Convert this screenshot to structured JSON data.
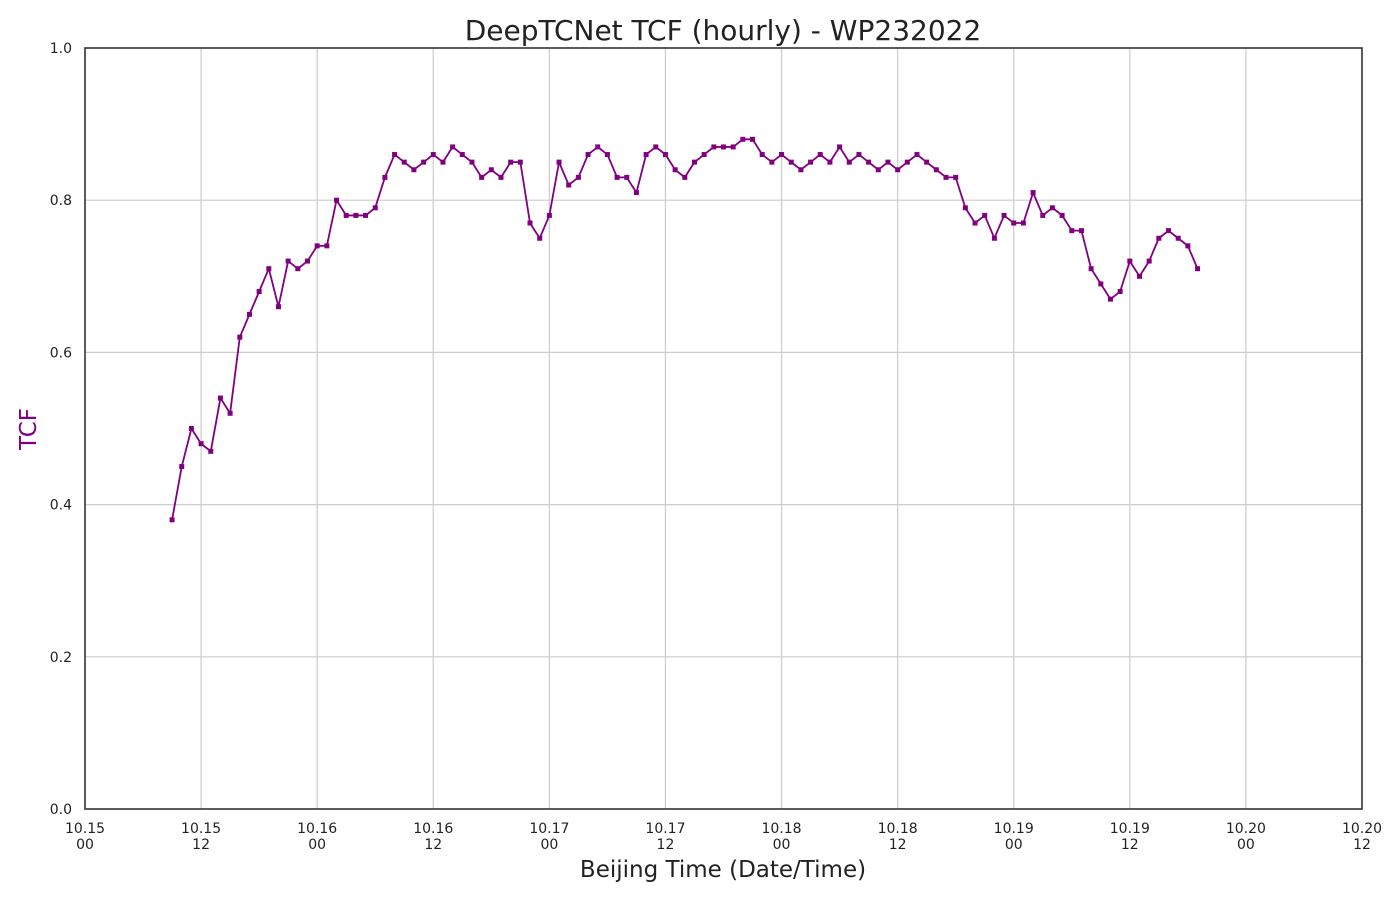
{
  "chart_data": {
    "type": "line",
    "title": "DeepTCNet TCF (hourly) - WP232022",
    "xlabel": "Beijing Time (Date/Time)",
    "ylabel": "TCF",
    "ylim": [
      0,
      1
    ],
    "yticks": [
      "0.0",
      "0.2",
      "0.4",
      "0.6",
      "0.8",
      "1.0"
    ],
    "xlim_hours": [
      0,
      132
    ],
    "xticks": [
      {
        "date": "10.15",
        "time": "00"
      },
      {
        "date": "10.15",
        "time": "12"
      },
      {
        "date": "10.16",
        "time": "00"
      },
      {
        "date": "10.16",
        "time": "12"
      },
      {
        "date": "10.17",
        "time": "00"
      },
      {
        "date": "10.17",
        "time": "12"
      },
      {
        "date": "10.18",
        "time": "00"
      },
      {
        "date": "10.18",
        "time": "12"
      },
      {
        "date": "10.19",
        "time": "00"
      },
      {
        "date": "10.19",
        "time": "12"
      },
      {
        "date": "10.20",
        "time": "00"
      },
      {
        "date": "10.20",
        "time": "12"
      }
    ],
    "grid": true,
    "colors": {
      "series": "#800080",
      "ylabel": "#800080"
    },
    "series": [
      {
        "start_hour": 9,
        "step_hours": 1,
        "values": [
          0.38,
          0.45,
          0.5,
          0.48,
          0.47,
          0.54,
          0.52,
          0.62,
          0.65,
          0.68,
          0.71,
          0.66,
          0.72,
          0.71,
          0.72,
          0.74,
          0.74,
          0.8,
          0.78,
          0.78,
          0.78,
          0.79,
          0.83,
          0.86,
          0.85,
          0.84,
          0.85,
          0.86,
          0.85,
          0.87,
          0.86,
          0.85,
          0.83,
          0.84,
          0.83,
          0.85,
          0.85,
          0.77,
          0.75,
          0.78,
          0.85,
          0.82,
          0.83,
          0.86,
          0.87,
          0.86,
          0.83,
          0.83,
          0.81,
          0.86,
          0.87,
          0.86,
          0.84,
          0.83,
          0.85,
          0.86,
          0.87,
          0.87,
          0.87,
          0.88,
          0.88,
          0.86,
          0.85,
          0.86,
          0.85,
          0.84,
          0.85,
          0.86,
          0.85,
          0.87,
          0.85,
          0.86,
          0.85,
          0.84,
          0.85,
          0.84,
          0.85,
          0.86,
          0.85,
          0.84,
          0.83,
          0.83,
          0.79,
          0.77,
          0.78,
          0.75,
          0.78,
          0.77,
          0.77,
          0.81,
          0.78,
          0.79,
          0.78,
          0.76,
          0.76,
          0.71,
          0.69,
          0.67,
          0.68,
          0.72,
          0.7,
          0.72,
          0.75,
          0.76,
          0.75,
          0.74,
          0.71
        ]
      }
    ]
  }
}
